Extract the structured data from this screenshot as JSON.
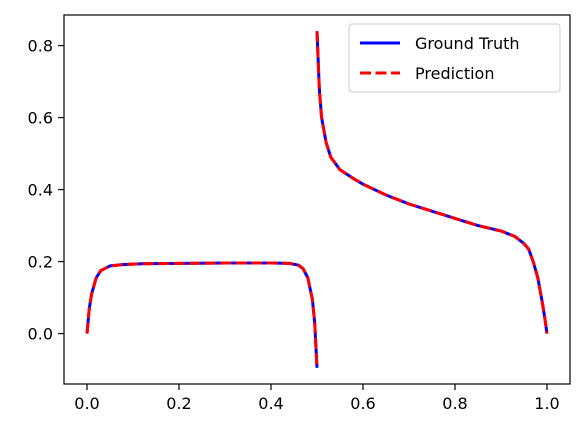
{
  "chart_data": {
    "type": "line",
    "title": "",
    "xlabel": "",
    "ylabel": "",
    "xlim": [
      -0.05,
      1.05
    ],
    "ylim": [
      -0.14,
      0.885
    ],
    "xticks": [
      "0.0",
      "0.2",
      "0.4",
      "0.6",
      "0.8",
      "1.0"
    ],
    "yticks": [
      "0.0",
      "0.2",
      "0.4",
      "0.6",
      "0.8"
    ],
    "grid": false,
    "legend_position": "top-right",
    "series": [
      {
        "name": "Ground Truth",
        "color": "#0000ff",
        "style": "solid",
        "x": [
          0.0,
          0.005,
          0.01,
          0.02,
          0.03,
          0.05,
          0.08,
          0.12,
          0.2,
          0.3,
          0.4,
          0.44,
          0.46,
          0.47,
          0.48,
          0.49,
          0.495,
          0.5,
          null,
          0.5,
          0.505,
          0.51,
          0.52,
          0.53,
          0.55,
          0.58,
          0.6,
          0.65,
          0.7,
          0.75,
          0.8,
          0.85,
          0.9,
          0.93,
          0.95,
          0.96,
          0.97,
          0.98,
          0.99,
          0.995,
          1.0
        ],
        "y": [
          0.0,
          0.07,
          0.11,
          0.155,
          0.175,
          0.188,
          0.192,
          0.194,
          0.195,
          0.196,
          0.196,
          0.195,
          0.19,
          0.18,
          0.155,
          0.095,
          0.03,
          -0.095,
          null,
          0.84,
          0.68,
          0.6,
          0.53,
          0.49,
          0.455,
          0.43,
          0.415,
          0.385,
          0.36,
          0.34,
          0.32,
          0.3,
          0.285,
          0.27,
          0.25,
          0.235,
          0.2,
          0.155,
          0.085,
          0.045,
          0.0
        ]
      },
      {
        "name": "Prediction",
        "color": "#ff0000",
        "style": "dashed",
        "x": [
          0.0,
          0.005,
          0.01,
          0.02,
          0.03,
          0.05,
          0.08,
          0.12,
          0.2,
          0.3,
          0.4,
          0.44,
          0.46,
          0.47,
          0.48,
          0.49,
          0.495,
          0.5,
          null,
          0.5,
          0.505,
          0.51,
          0.52,
          0.53,
          0.55,
          0.58,
          0.6,
          0.65,
          0.7,
          0.75,
          0.8,
          0.85,
          0.9,
          0.93,
          0.95,
          0.96,
          0.97,
          0.98,
          0.99,
          0.995,
          1.0
        ],
        "y": [
          0.0,
          0.07,
          0.11,
          0.155,
          0.175,
          0.188,
          0.192,
          0.194,
          0.195,
          0.196,
          0.196,
          0.195,
          0.19,
          0.18,
          0.155,
          0.095,
          0.03,
          -0.095,
          null,
          0.84,
          0.68,
          0.6,
          0.53,
          0.49,
          0.455,
          0.43,
          0.415,
          0.385,
          0.36,
          0.34,
          0.32,
          0.3,
          0.285,
          0.27,
          0.25,
          0.235,
          0.2,
          0.155,
          0.085,
          0.045,
          0.0
        ]
      }
    ]
  }
}
